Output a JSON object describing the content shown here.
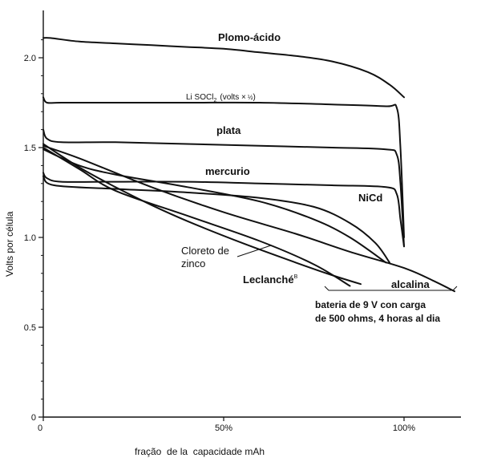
{
  "chart_data": {
    "type": "line",
    "title": "",
    "xlabel": "fração  de la  capacidade mAh",
    "ylabel": "Volts por célula",
    "xlim": [
      0,
      115
    ],
    "ylim": [
      0,
      2.2
    ],
    "grid": false,
    "x_ticks": [
      {
        "value": 0,
        "label": "0"
      },
      {
        "value": 50,
        "label": "50%"
      },
      {
        "value": 100,
        "label": "100%"
      }
    ],
    "y_ticks": [
      {
        "value": 0,
        "label": "0"
      },
      {
        "value": 0.5,
        "label": "0.5"
      },
      {
        "value": 1.0,
        "label": "1.0"
      },
      {
        "value": 1.5,
        "label": "1.5"
      },
      {
        "value": 2.0,
        "label": "2.0"
      }
    ],
    "series": [
      {
        "name": "Plomo-ácido",
        "points": [
          [
            0,
            2.11
          ],
          [
            2,
            2.11
          ],
          [
            10,
            2.09
          ],
          [
            20,
            2.08
          ],
          [
            30,
            2.07
          ],
          [
            40,
            2.06
          ],
          [
            50,
            2.05
          ],
          [
            60,
            2.03
          ],
          [
            70,
            2.01
          ],
          [
            80,
            1.98
          ],
          [
            90,
            1.92
          ],
          [
            96,
            1.85
          ],
          [
            100,
            1.78
          ]
        ]
      },
      {
        "name": "Li SOCl2 (volts × ½)",
        "points": [
          [
            0,
            1.78
          ],
          [
            1,
            1.75
          ],
          [
            5,
            1.75
          ],
          [
            20,
            1.75
          ],
          [
            40,
            1.75
          ],
          [
            60,
            1.75
          ],
          [
            80,
            1.74
          ],
          [
            95,
            1.73
          ],
          [
            98,
            1.72
          ],
          [
            99,
            1.5
          ],
          [
            100,
            1.0
          ]
        ]
      },
      {
        "name": "plata",
        "points": [
          [
            0,
            1.6
          ],
          [
            1,
            1.55
          ],
          [
            5,
            1.53
          ],
          [
            20,
            1.53
          ],
          [
            40,
            1.52
          ],
          [
            60,
            1.51
          ],
          [
            80,
            1.5
          ],
          [
            95,
            1.49
          ],
          [
            98,
            1.46
          ],
          [
            99,
            1.3
          ],
          [
            100,
            0.95
          ]
        ]
      },
      {
        "name": "mercurio",
        "points": [
          [
            0,
            1.36
          ],
          [
            1,
            1.33
          ],
          [
            5,
            1.31
          ],
          [
            20,
            1.31
          ],
          [
            40,
            1.31
          ],
          [
            60,
            1.3
          ],
          [
            80,
            1.29
          ],
          [
            95,
            1.28
          ],
          [
            98,
            1.24
          ],
          [
            99,
            1.1
          ],
          [
            100,
            0.95
          ]
        ]
      },
      {
        "name": "NiCd",
        "points": [
          [
            0,
            1.34
          ],
          [
            3,
            1.29
          ],
          [
            20,
            1.27
          ],
          [
            40,
            1.25
          ],
          [
            60,
            1.22
          ],
          [
            75,
            1.17
          ],
          [
            85,
            1.08
          ],
          [
            92,
            0.97
          ],
          [
            96,
            0.86
          ]
        ]
      },
      {
        "name": "Cloreto de zinco",
        "points": [
          [
            0,
            1.49
          ],
          [
            10,
            1.4
          ],
          [
            20,
            1.35
          ],
          [
            40,
            1.28
          ],
          [
            60,
            1.2
          ],
          [
            75,
            1.1
          ],
          [
            85,
            1.0
          ],
          [
            95,
            0.86
          ]
        ]
      },
      {
        "name": "alcalina",
        "points": [
          [
            0,
            1.51
          ],
          [
            10,
            1.44
          ],
          [
            30,
            1.28
          ],
          [
            50,
            1.14
          ],
          [
            70,
            1.02
          ],
          [
            85,
            0.92
          ],
          [
            100,
            0.83
          ],
          [
            108,
            0.76
          ],
          [
            114,
            0.7
          ]
        ]
      },
      {
        "name": "Leclanché",
        "points": [
          [
            0,
            1.5
          ],
          [
            10,
            1.38
          ],
          [
            20,
            1.26
          ],
          [
            40,
            1.12
          ],
          [
            60,
            0.98
          ],
          [
            75,
            0.85
          ],
          [
            85,
            0.73
          ]
        ]
      },
      {
        "name": "",
        "points": [
          [
            0,
            1.52
          ],
          [
            10,
            1.39
          ],
          [
            20,
            1.28
          ],
          [
            30,
            1.18
          ],
          [
            40,
            1.09
          ],
          [
            55,
            0.97
          ],
          [
            70,
            0.86
          ],
          [
            80,
            0.79
          ],
          [
            88,
            0.74
          ]
        ]
      }
    ],
    "annotations": [
      {
        "text": "Plomo-ácido"
      },
      {
        "text": "Li SOCl"
      },
      {
        "text": "2"
      },
      {
        "text": "(volts ×"
      },
      {
        "text": "½"
      },
      {
        "text": ")"
      },
      {
        "text": "plata"
      },
      {
        "text": "mercurio"
      },
      {
        "text": "NiCd"
      },
      {
        "text": "Cloreto de"
      },
      {
        "text": "zinco"
      },
      {
        "text": "Leclanché"
      },
      {
        "text": "B"
      },
      {
        "text": "alcalina"
      },
      {
        "text": "bateria de 9 V con carga"
      },
      {
        "text": "de 500 ohms, 4 horas al dia"
      }
    ]
  }
}
